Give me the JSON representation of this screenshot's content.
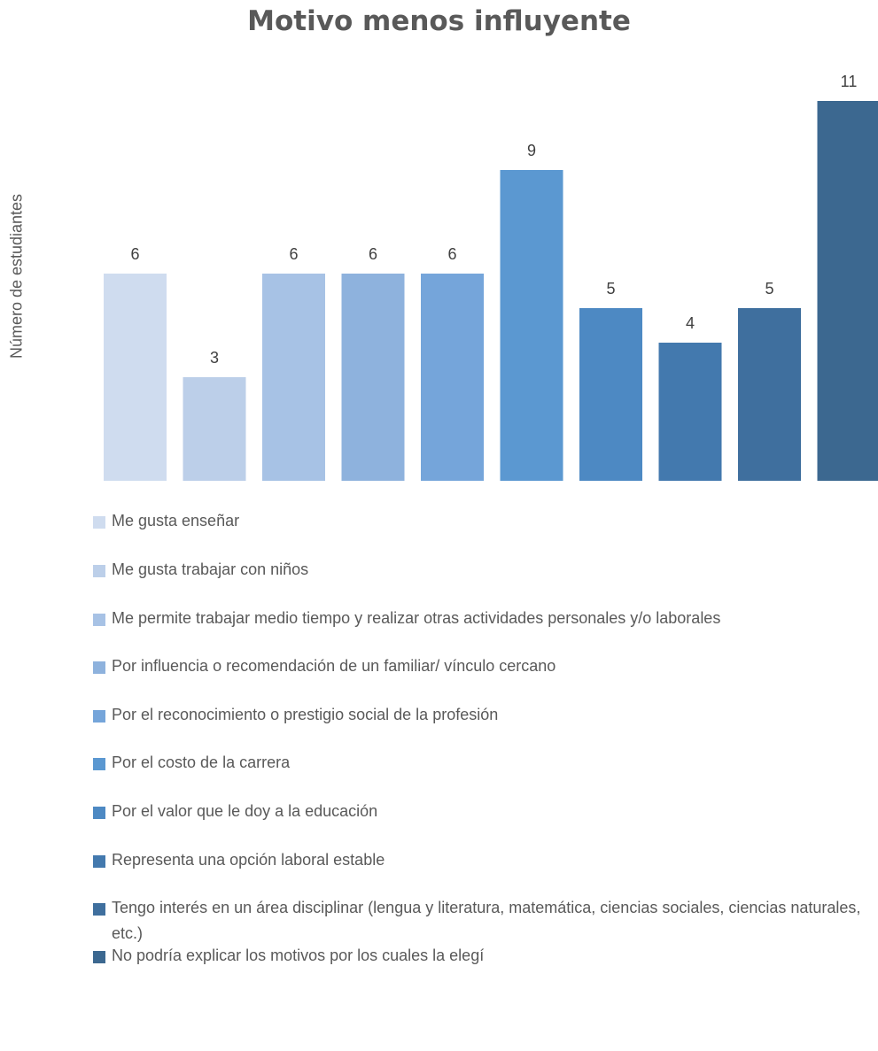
{
  "chart_data": {
    "type": "bar",
    "title": "Motivo menos influyente",
    "xlabel": "",
    "ylabel": "Número de estudiantes",
    "ylim": [
      0,
      11
    ],
    "grid": false,
    "legend_position": "bottom",
    "categories": [
      "Me gusta enseñar",
      "Me gusta trabajar con niños",
      "Me permite trabajar medio tiempo y realizar otras actividades personales y/o laborales",
      "Por influencia o recomendación de un familiar/ vínculo cercano",
      "Por el reconocimiento o prestigio social de la profesión",
      "Por el costo de la carrera",
      "Por el valor que le doy a la educación",
      "Representa una opción laboral estable",
      "Tengo interés en un área disciplinar (lengua y literatura, matemática, ciencias sociales, ciencias naturales, etc.)",
      "No podría explicar los motivos por los cuales la elegí"
    ],
    "values": [
      6,
      3,
      6,
      6,
      6,
      9,
      5,
      4,
      5,
      11
    ],
    "data_labels": [
      "6",
      "3",
      "6",
      "6",
      "6",
      "9",
      "5",
      "4",
      "5",
      "11"
    ],
    "colors": [
      "#cfdcef",
      "#bccfe9",
      "#a7c2e5",
      "#8eb2dd",
      "#75a5da",
      "#5b98d1",
      "#4d89c3",
      "#4379ae",
      "#3f6f9e",
      "#3c6890"
    ]
  }
}
